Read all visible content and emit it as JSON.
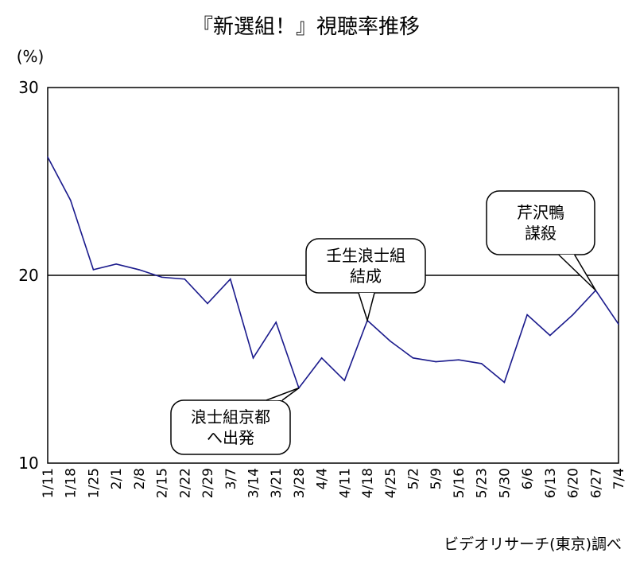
{
  "chart_data": {
    "type": "line",
    "title": "『新選組！』視聴率推移",
    "ylabel": "(%)",
    "source": "ビデオリサーチ(東京)調べ",
    "ylim": [
      10,
      30
    ],
    "yticks": [
      "10",
      "20",
      "30"
    ],
    "reference_line": 20,
    "grid": false,
    "categories": [
      "1/11",
      "1/18",
      "1/25",
      "2/1",
      "2/8",
      "2/15",
      "2/22",
      "2/29",
      "3/7",
      "3/14",
      "3/21",
      "3/28",
      "4/4",
      "4/11",
      "4/18",
      "4/25",
      "5/2",
      "5/9",
      "5/16",
      "5/23",
      "5/30",
      "6/6",
      "6/13",
      "6/20",
      "6/27",
      "7/4"
    ],
    "series": [
      {
        "values": [
          26.3,
          24.0,
          20.3,
          20.6,
          20.3,
          19.9,
          19.8,
          18.5,
          19.8,
          15.6,
          17.5,
          14.0,
          15.6,
          14.4,
          17.6,
          16.5,
          15.6,
          15.4,
          15.5,
          15.3,
          14.3,
          17.9,
          16.8,
          17.9,
          19.2,
          17.4
        ]
      }
    ],
    "annotations": [
      {
        "lines": [
          "浪士組京都",
          "へ出発"
        ],
        "target_index": 11
      },
      {
        "lines": [
          "壬生浪士組",
          "結成"
        ],
        "target_index": 14
      },
      {
        "lines": [
          "芹沢鴨",
          "謀殺"
        ],
        "target_index": 24
      }
    ]
  },
  "colors": {
    "line": "#1a1a8c",
    "axis": "#000000",
    "callout_fill": "#ffffff"
  }
}
